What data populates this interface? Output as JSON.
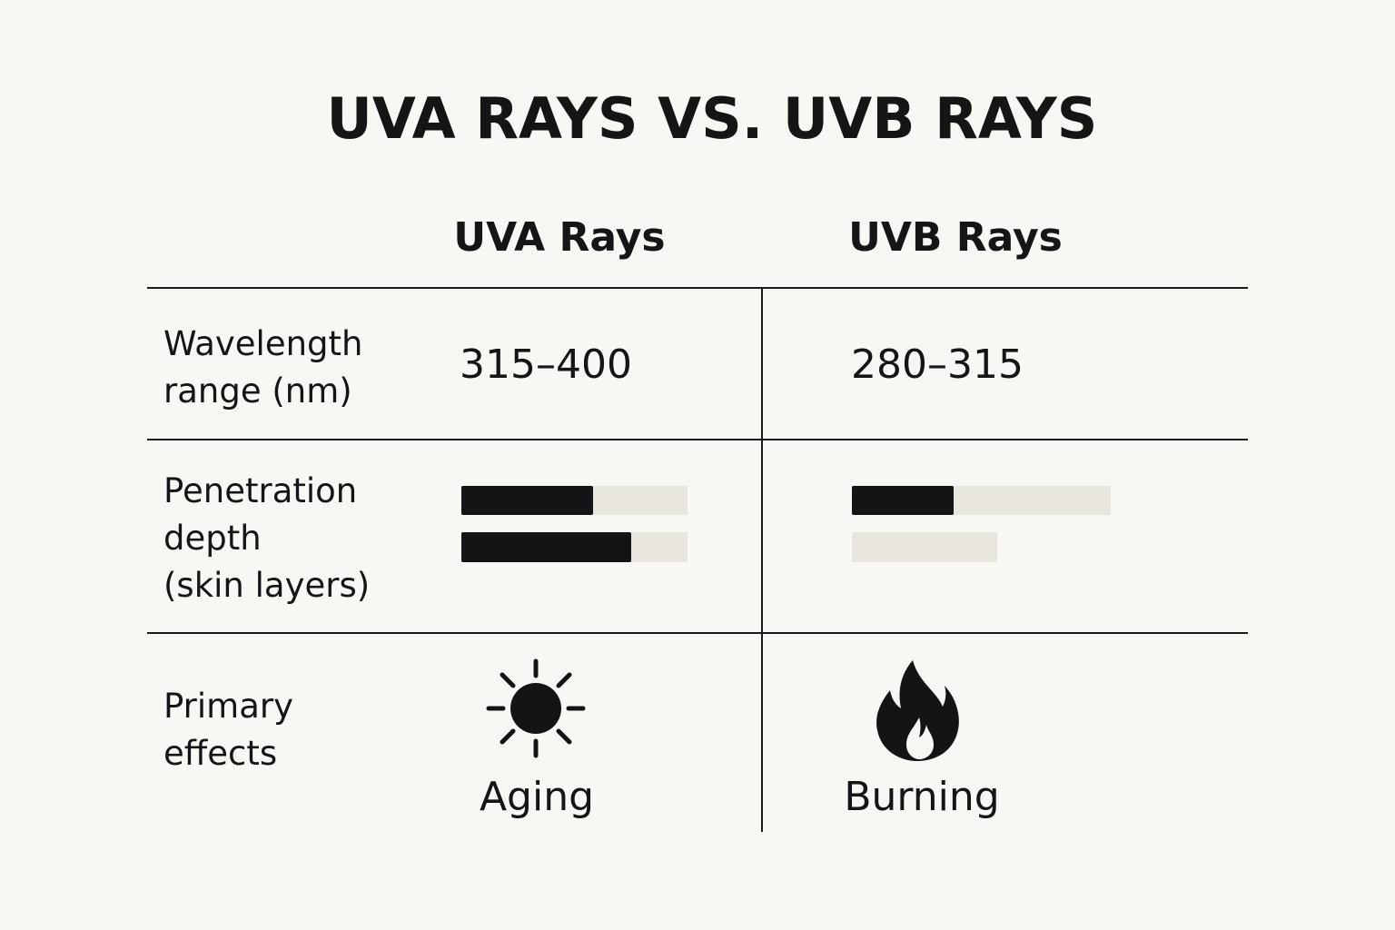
{
  "title": "UVA RAYS VS. UVB RAYS",
  "table": {
    "columns": [
      "UVA Rays",
      "UVB Rays"
    ],
    "rows": [
      {
        "label": [
          "Wavelength",
          "range (nm)"
        ],
        "cells": [
          "315–400",
          "280–315"
        ]
      },
      {
        "label": [
          "Penetration",
          "depth",
          "(skin layers)"
        ]
      },
      {
        "label": [
          "Primary",
          "effects"
        ],
        "cells": [
          "Aging",
          "Burning"
        ]
      }
    ]
  }
}
